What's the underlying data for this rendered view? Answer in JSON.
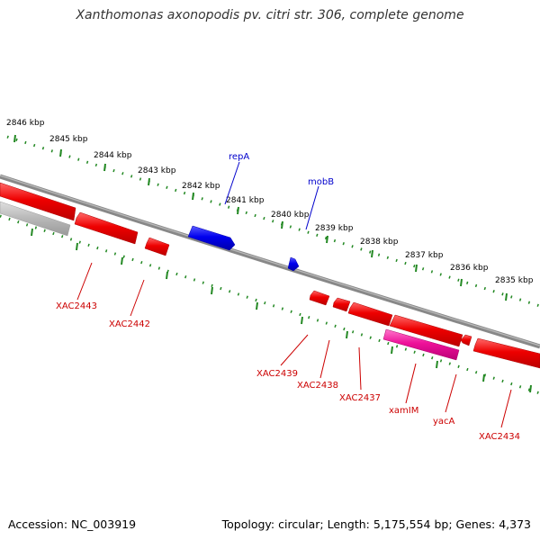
{
  "title": "Xanthomonas axonopodis pv. citri str. 306, complete genome",
  "footer": {
    "accession": "Accession: NC_003919",
    "summary": "Topology: circular; Length: 5,175,554 bp; Genes: 4,373"
  },
  "colors": {
    "forward_gene": "#0000ee",
    "reverse_gene": "#ee0000",
    "highlight_gene": "#ee1199",
    "grey_feature": "#bbbbbb",
    "backbone": "#777777",
    "ruler": "#228822",
    "label_blue": "#0000cc",
    "label_red": "#cc0000"
  },
  "ruler_labels": [
    "2846 kbp",
    "2845 kbp",
    "2844 kbp",
    "2843 kbp",
    "2842 kbp",
    "2841 kbp",
    "2840 kbp",
    "2839 kbp",
    "2838 kbp",
    "2837 kbp",
    "2836 kbp",
    "2835 kbp"
  ],
  "gene_labels": {
    "forward": [
      "repA",
      "mobB"
    ],
    "reverse": [
      "XAC2443",
      "XAC2442",
      "XAC2439",
      "XAC2438",
      "XAC2437",
      "xamIM",
      "yacA",
      "XAC2434"
    ]
  }
}
